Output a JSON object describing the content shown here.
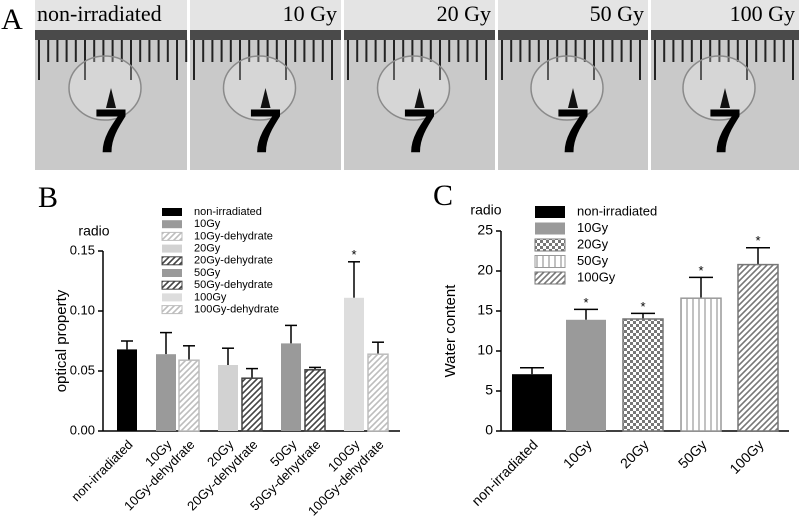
{
  "panel_labels": [
    "A",
    "B",
    "C"
  ],
  "photos": [
    {
      "label": "non-irradiated",
      "ruler": "7"
    },
    {
      "label": "10 Gy",
      "ruler": "7"
    },
    {
      "label": "20 Gy",
      "ruler": "7"
    },
    {
      "label": "50 Gy",
      "ruler": "7"
    },
    {
      "label": "100 Gy",
      "ruler": "7"
    }
  ],
  "chart_data": [
    {
      "type": "bar",
      "annotation": "radio",
      "y_label": "optical property",
      "categories": [
        "non-irradiated",
        "10Gy",
        "10Gy-dehydrate",
        "20Gy",
        "20Gy-dehydrate",
        "50Gy",
        "50Gy-dehydrate",
        "100Gy",
        "100Gy-dehydrate"
      ],
      "values": [
        0.068,
        0.064,
        0.059,
        0.055,
        0.044,
        0.073,
        0.051,
        0.111,
        0.064
      ],
      "errors": [
        0.007,
        0.018,
        0.012,
        0.014,
        0.008,
        0.015,
        0.002,
        0.03,
        0.01
      ],
      "colors": [
        "#000000",
        "#9a9a9a",
        "#bdbdbd",
        "#d2d2d2",
        "#444444",
        "#9a9a9a",
        "#444444",
        "#dddddd",
        "#bdbdbd"
      ],
      "patterns": [
        "solid",
        "solid",
        "diag",
        "solid",
        "diag",
        "solid",
        "diag",
        "solid",
        "diag"
      ],
      "markers": [
        null,
        null,
        null,
        null,
        null,
        null,
        null,
        "*",
        null
      ],
      "ylim": [
        0,
        0.15
      ],
      "yticks": [
        {
          "value": 0,
          "label": "0.00"
        },
        {
          "value": 0.05,
          "label": "0.05"
        },
        {
          "value": 0.1,
          "label": "0.10"
        },
        {
          "value": 0.15,
          "label": "0.15"
        }
      ],
      "legend": true
    },
    {
      "type": "bar",
      "annotation": "radio",
      "y_label": "Water content",
      "categories": [
        "non-irradiated",
        "10Gy",
        "20Gy",
        "50Gy",
        "100Gy"
      ],
      "values": [
        7.1,
        13.9,
        14.0,
        16.6,
        20.8
      ],
      "errors": [
        0.8,
        1.3,
        0.7,
        2.6,
        2.1
      ],
      "colors": [
        "#000000",
        "#9a9a9a",
        "#777777",
        "#999999",
        "#777777"
      ],
      "patterns": [
        "solid",
        "solid",
        "checker",
        "vlines",
        "diag"
      ],
      "markers": [
        null,
        "*",
        "*",
        "*",
        "*"
      ],
      "ylim": [
        0,
        25
      ],
      "yticks": [
        0,
        5,
        10,
        15,
        20,
        25
      ],
      "legend": true
    }
  ]
}
